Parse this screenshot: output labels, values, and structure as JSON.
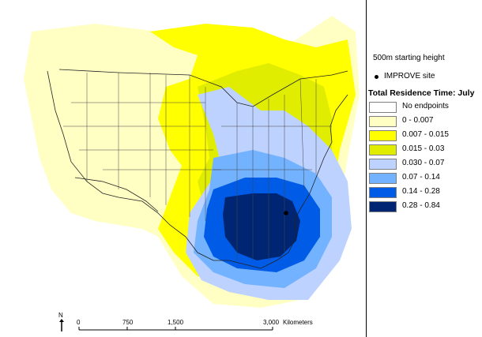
{
  "legend": {
    "subtitle": "500m starting height",
    "site_label": "IMPROVE site",
    "title": "Total Residence Time: July",
    "items": [
      {
        "label": "No endpoints",
        "color": "#ffffff"
      },
      {
        "label": "0 - 0.007",
        "color": "#ffffc4"
      },
      {
        "label": "0.007 - 0.015",
        "color": "#ffff00"
      },
      {
        "label": "0.015 - 0.03",
        "color": "#e1ed00"
      },
      {
        "label": "0.030 - 0.07",
        "color": "#bed2ff"
      },
      {
        "label": "0.07 - 0.14",
        "color": "#73b2ff"
      },
      {
        "label": "0.14 - 0.28",
        "color": "#005ce6"
      },
      {
        "label": "0.28 - 0.84",
        "color": "#002673"
      }
    ]
  },
  "scale_bar": {
    "ticks": [
      "0",
      "750",
      "1,500",
      "3,000"
    ],
    "unit": "Kilometers"
  },
  "north_arrow": {
    "label": "N"
  },
  "colors": {
    "state_lines": "#444444",
    "coast_lines": "#222222",
    "site_marker": "#000000"
  }
}
